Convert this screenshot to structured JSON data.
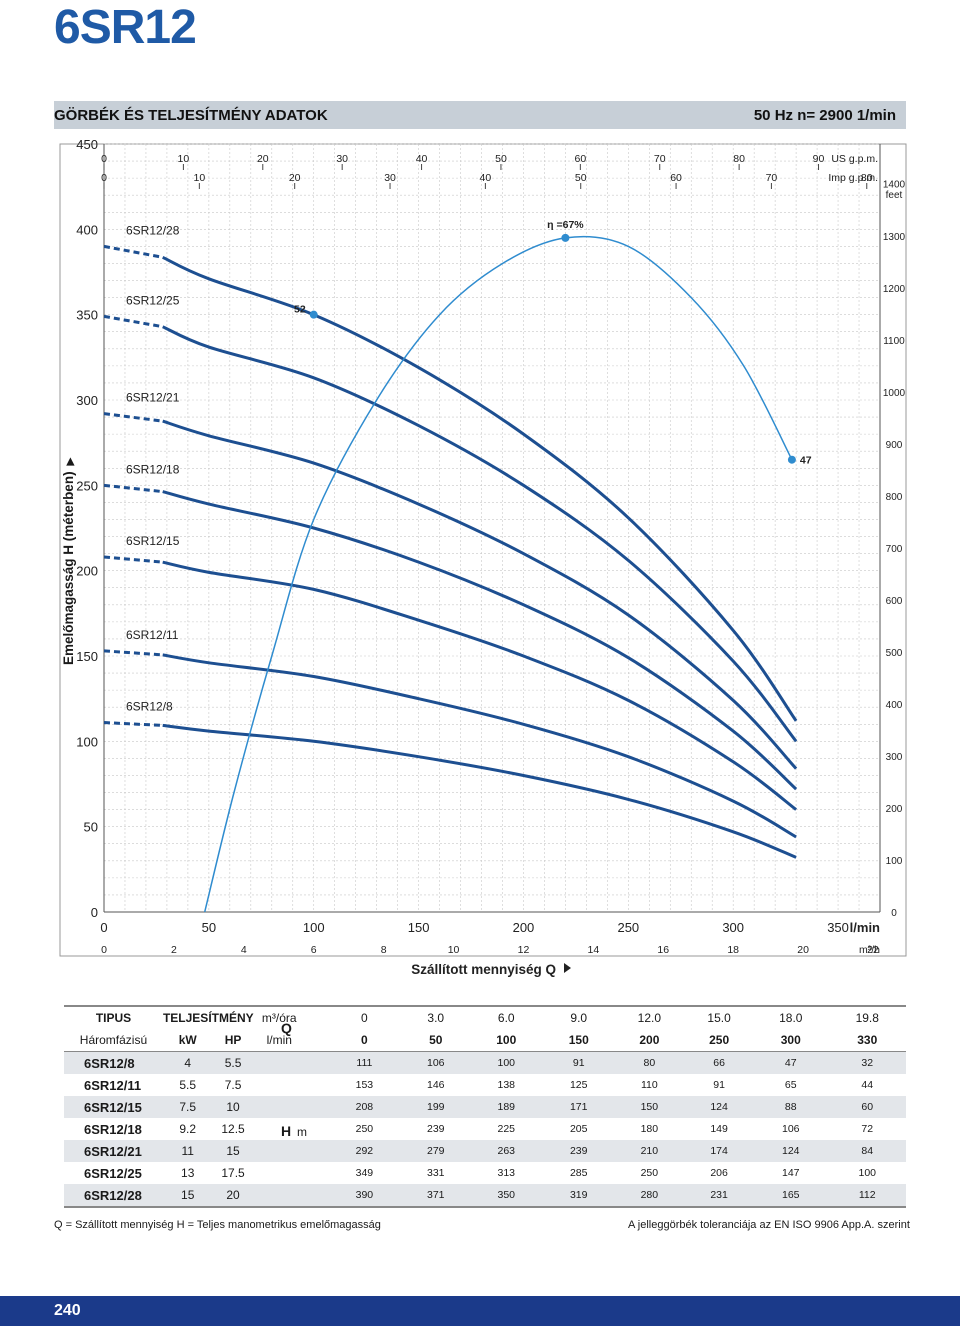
{
  "page": {
    "model": "6SR12",
    "header_title": "GÖRBÉK ÉS TELJESÍTMÉNY ADATOK",
    "header_freq": "50 Hz    n= 2900  1/min",
    "y_axis_title": "Emelőmagasság  H  (méterben)",
    "y_axis_arrow": "▶",
    "page_number": "240",
    "footer_left": "Q = Szállított mennyiség  H = Teljes manometrikus emelőmagasság",
    "footer_right": "A jelleggörbék toleranciája az EN ISO 9906 App.A. szerint"
  },
  "chart_data": {
    "type": "line",
    "x_unit_primary": "l/min",
    "x_ticks_primary": [
      "0",
      "50",
      "100",
      "150",
      "200",
      "250",
      "300",
      "350"
    ],
    "x_unit_secondary": "m³/h",
    "x_ticks_secondary": [
      "0",
      "2",
      "4",
      "6",
      "8",
      "10",
      "12",
      "14",
      "16",
      "18",
      "20",
      "22"
    ],
    "x_unit_usgpm": "US g.p.m.",
    "x_ticks_usgpm": [
      "0",
      "10",
      "20",
      "30",
      "40",
      "50",
      "60",
      "70",
      "80",
      "90"
    ],
    "x_unit_impgpm": "Imp g.p.m.",
    "x_ticks_impgpm": [
      "0",
      "10",
      "20",
      "30",
      "40",
      "50",
      "60",
      "70",
      "80"
    ],
    "x_title": "Szállított mennyiség  Q",
    "y_ticks_left": [
      "0",
      "50",
      "100",
      "150",
      "200",
      "250",
      "300",
      "350",
      "400",
      "450"
    ],
    "y_unit_right": "feet",
    "y_ticks_right": [
      "0",
      "100",
      "200",
      "300",
      "400",
      "500",
      "600",
      "700",
      "800",
      "900",
      "1000",
      "1100",
      "1200",
      "1300",
      "1400"
    ],
    "xlim_lmin": [
      0,
      370
    ],
    "ylim_m": [
      0,
      450
    ],
    "grid": true,
    "q_lmin": [
      0,
      50,
      100,
      150,
      200,
      250,
      300,
      330
    ],
    "series": [
      {
        "name": "6SR12/28",
        "values": [
          390,
          371,
          350,
          319,
          280,
          231,
          165,
          112
        ]
      },
      {
        "name": "6SR12/25",
        "values": [
          349,
          331,
          313,
          285,
          250,
          206,
          147,
          100
        ]
      },
      {
        "name": "6SR12/21",
        "values": [
          292,
          279,
          263,
          239,
          210,
          174,
          124,
          84
        ]
      },
      {
        "name": "6SR12/18",
        "values": [
          250,
          239,
          225,
          205,
          180,
          149,
          106,
          72
        ]
      },
      {
        "name": "6SR12/15",
        "values": [
          208,
          199,
          189,
          171,
          150,
          124,
          88,
          60
        ]
      },
      {
        "name": "6SR12/11",
        "values": [
          153,
          146,
          138,
          125,
          110,
          91,
          65,
          44
        ]
      },
      {
        "name": "6SR12/8",
        "values": [
          111,
          106,
          100,
          91,
          80,
          66,
          47,
          32
        ]
      }
    ],
    "efficiency_curve": {
      "q_lmin": [
        48,
        62,
        80,
        100,
        130,
        160,
        190,
        220,
        250,
        280,
        305,
        328
      ],
      "h_m": [
        0,
        70,
        150,
        230,
        300,
        350,
        380,
        395,
        390,
        360,
        320,
        265
      ]
    },
    "efficiency_labels": [
      {
        "text": "η =67%",
        "q_lmin": 220,
        "h_m": 395
      },
      {
        "text": "52",
        "q_lmin": 100,
        "h_m": 350
      },
      {
        "text": "47",
        "q_lmin": 328,
        "h_m": 265
      }
    ]
  },
  "table": {
    "col_header_1": {
      "tipus": "TIPUS",
      "teljesitmeny": "TELJESÍTMÉNY",
      "unit": "m³/óra",
      "values": [
        "0",
        "3.0",
        "6.0",
        "9.0",
        "12.0",
        "15.0",
        "18.0",
        "19.8"
      ]
    },
    "col_header_2": {
      "tipus": "Háromfázisú",
      "kw": "kW",
      "hp": "HP",
      "unit": "l/min",
      "values": [
        "0",
        "50",
        "100",
        "150",
        "200",
        "250",
        "300",
        "330"
      ]
    },
    "q_label": "Q",
    "h_label": "H",
    "h_unit": "m",
    "rows": [
      {
        "model": "6SR12/8",
        "kw": "4",
        "hp": "5.5",
        "h": [
          "111",
          "106",
          "100",
          "91",
          "80",
          "66",
          "47",
          "32"
        ]
      },
      {
        "model": "6SR12/11",
        "kw": "5.5",
        "hp": "7.5",
        "h": [
          "153",
          "146",
          "138",
          "125",
          "110",
          "91",
          "65",
          "44"
        ]
      },
      {
        "model": "6SR12/15",
        "kw": "7.5",
        "hp": "10",
        "h": [
          "208",
          "199",
          "189",
          "171",
          "150",
          "124",
          "88",
          "60"
        ]
      },
      {
        "model": "6SR12/18",
        "kw": "9.2",
        "hp": "12.5",
        "h": [
          "250",
          "239",
          "225",
          "205",
          "180",
          "149",
          "106",
          "72"
        ]
      },
      {
        "model": "6SR12/21",
        "kw": "11",
        "hp": "15",
        "h": [
          "292",
          "279",
          "263",
          "239",
          "210",
          "174",
          "124",
          "84"
        ]
      },
      {
        "model": "6SR12/25",
        "kw": "13",
        "hp": "17.5",
        "h": [
          "349",
          "331",
          "313",
          "285",
          "250",
          "206",
          "147",
          "100"
        ]
      },
      {
        "model": "6SR12/28",
        "kw": "15",
        "hp": "20",
        "h": [
          "390",
          "371",
          "350",
          "319",
          "280",
          "231",
          "165",
          "112"
        ]
      }
    ]
  },
  "colors": {
    "brand_blue": "#1f5aa6",
    "curve_blue": "#1d4f91",
    "efficiency_blue": "#2f8ccf",
    "header_gray": "#c7cfd7",
    "page_bar": "#1b3a8a",
    "grid": "#c8c8c8"
  }
}
